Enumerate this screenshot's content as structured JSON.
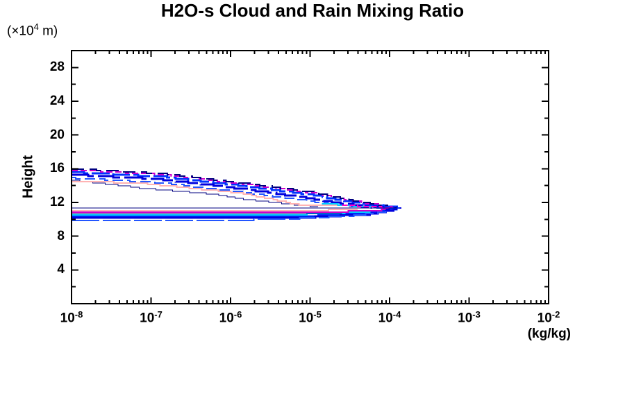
{
  "page": {
    "background": "#ffffff",
    "text_color": "#000000"
  },
  "header": {
    "title": "H2O-s Cloud and Rain Mixing Ratio"
  },
  "axes": {
    "y_unit_prefix": "(×10",
    "y_unit_exponent": "4",
    "y_unit_suffix": " m)",
    "y_axis_label": "Height",
    "x_axis_unit": "(kg/kg)"
  },
  "chart_data": {
    "type": "contour",
    "title": "H2O-s Cloud and Rain Mixing Ratio",
    "xlabel": "(kg/kg)",
    "ylabel": "Height",
    "y_unit": "x10^4 m",
    "x_scale": "log",
    "x_range_log10": [
      -8,
      -2
    ],
    "x_tick_base": "10",
    "x_tick_exponents": [
      "-8",
      "-7",
      "-6",
      "-5",
      "-4",
      "-3",
      "-2"
    ],
    "y_range": [
      0,
      30
    ],
    "y_major_ticks": [
      {
        "value": 28,
        "label": "28"
      },
      {
        "value": 24,
        "label": "24"
      },
      {
        "value": 20,
        "label": "20"
      },
      {
        "value": 16,
        "label": "16"
      },
      {
        "value": 12,
        "label": "12"
      },
      {
        "value": 8,
        "label": "8"
      },
      {
        "value": 4,
        "label": "4"
      }
    ],
    "y_minor_step": 2,
    "grid": false,
    "legend": "none",
    "contour_lines": [
      {
        "name": "contour-upper-blue-1",
        "color": "#0033ff",
        "width": 3,
        "dash": "26 5",
        "points": [
          [
            -8,
            15.6
          ],
          [
            -6.85,
            15.05
          ],
          [
            -5.85,
            13.95
          ],
          [
            -4.95,
            12.85
          ],
          [
            -4.3,
            11.75
          ],
          [
            -3.91,
            11.38
          ]
        ]
      },
      {
        "name": "contour-upper-blue-2",
        "color": "#0000dd",
        "width": 3,
        "dash": "34 6",
        "points": [
          [
            -8,
            15.3
          ],
          [
            -6.9,
            14.75
          ],
          [
            -5.9,
            13.65
          ],
          [
            -5.05,
            12.55
          ],
          [
            -4.4,
            11.6
          ],
          [
            -3.93,
            11.33
          ]
        ]
      },
      {
        "name": "contour-upper-blue-3",
        "color": "#2255ff",
        "width": 2,
        "dash": "15 6",
        "points": [
          [
            -8,
            14.9
          ],
          [
            -6.9,
            14.35
          ],
          [
            -5.95,
            13.3
          ],
          [
            -5.1,
            12.25
          ],
          [
            -4.45,
            11.5
          ],
          [
            -3.96,
            11.3
          ]
        ]
      },
      {
        "name": "contour-upper-magenta",
        "color": "#cc00cc",
        "width": 2,
        "dash": "9 4",
        "points": [
          [
            -8,
            15.85
          ],
          [
            -6.85,
            15.3
          ],
          [
            -5.85,
            14.2
          ],
          [
            -4.95,
            13.1
          ],
          [
            -4.3,
            11.9
          ],
          [
            -3.93,
            11.4
          ]
        ]
      },
      {
        "name": "contour-upper-navy-edge",
        "color": "#000080",
        "width": 2,
        "dash": "18 8",
        "points": [
          [
            -8,
            16.0
          ],
          [
            -6.9,
            15.45
          ],
          [
            -5.9,
            14.35
          ],
          [
            -5.0,
            13.25
          ],
          [
            -4.35,
            12.0
          ],
          [
            -3.92,
            11.42
          ]
        ]
      },
      {
        "name": "contour-upper-navy-thin",
        "color": "#000080",
        "width": 1,
        "points": [
          [
            -8,
            14.65
          ],
          [
            -7.15,
            13.72
          ],
          [
            -6.2,
            12.95
          ],
          [
            -5.84,
            12.4
          ],
          [
            -5.2,
            11.7
          ],
          [
            -4.9,
            11.5
          ]
        ]
      },
      {
        "name": "contour-upper-pink",
        "color": "#ffb3b3",
        "width": 2,
        "points": [
          [
            -8,
            14.5
          ],
          [
            -7.15,
            14.3
          ],
          [
            -5.84,
            13.05
          ],
          [
            -5.14,
            11.7
          ],
          [
            -4.5,
            11.58
          ]
        ]
      },
      {
        "name": "contour-tip-cyan",
        "color": "#00ccff",
        "width": 2,
        "points": [
          [
            -4.85,
            11.9
          ],
          [
            -4.5,
            11.6
          ],
          [
            -4.2,
            11.42
          ]
        ]
      },
      {
        "name": "contour-tip-magenta",
        "color": "#ff00cc",
        "width": 2,
        "dash": "8 3",
        "points": [
          [
            -4.6,
            11.7
          ],
          [
            -4.2,
            11.45
          ],
          [
            -3.95,
            11.35
          ]
        ]
      },
      {
        "name": "contour-lower-blue-1",
        "color": "#0033ff",
        "width": 3,
        "points": [
          [
            -8,
            10.35
          ],
          [
            -5.0,
            10.4
          ],
          [
            -4.2,
            10.8
          ],
          [
            -3.9,
            11.25
          ]
        ]
      },
      {
        "name": "contour-lower-blue-2",
        "color": "#0000dd",
        "width": 3,
        "points": [
          [
            -8,
            10.12
          ],
          [
            -5.2,
            10.15
          ],
          [
            -4.3,
            10.6
          ],
          [
            -3.95,
            11.1
          ]
        ]
      },
      {
        "name": "contour-lower-blue-3",
        "color": "#2255ff",
        "width": 2,
        "dash": "40 5",
        "points": [
          [
            -8,
            9.9
          ],
          [
            -5.5,
            9.95
          ],
          [
            -4.5,
            10.4
          ],
          [
            -4.05,
            10.95
          ]
        ]
      },
      {
        "name": "contour-lower-cyan",
        "color": "#00ccff",
        "width": 2,
        "points": [
          [
            -8,
            10.52
          ],
          [
            -5.2,
            10.55
          ],
          [
            -4.35,
            10.85
          ],
          [
            -4.1,
            11.1
          ]
        ]
      },
      {
        "name": "contour-lower-magenta",
        "color": "#cc00cc",
        "width": 2,
        "points": [
          [
            -8,
            10.85
          ],
          [
            -5.0,
            10.85
          ],
          [
            -4.2,
            11.0
          ],
          [
            -4.0,
            11.2
          ]
        ]
      },
      {
        "name": "contour-lower-pink",
        "color": "#ffb3b3",
        "width": 2,
        "points": [
          [
            -8,
            11.05
          ],
          [
            -5.5,
            11.05
          ],
          [
            -4.4,
            11.12
          ]
        ]
      },
      {
        "name": "contour-lower-navy-top",
        "color": "#000080",
        "width": 1,
        "points": [
          [
            -8,
            11.38
          ],
          [
            -6,
            11.38
          ],
          [
            -4.8,
            11.35
          ],
          [
            -4.0,
            11.32
          ],
          [
            -3.9,
            11.35
          ]
        ]
      },
      {
        "name": "contour-lower-navy-mid",
        "color": "#000080",
        "width": 1,
        "points": [
          [
            -8,
            10.68
          ],
          [
            -5.6,
            10.68
          ],
          [
            -4.6,
            10.75
          ]
        ]
      },
      {
        "name": "contour-tip-scatter-1",
        "color": "#0033ff",
        "width": 2,
        "dash": "5 4",
        "points": [
          [
            -4.1,
            11.6
          ],
          [
            -3.86,
            11.35
          ]
        ]
      },
      {
        "name": "contour-tip-scatter-2",
        "color": "#0000dd",
        "width": 2,
        "dash": "6 5",
        "points": [
          [
            -4.05,
            11.15
          ],
          [
            -3.85,
            11.3
          ]
        ]
      }
    ]
  }
}
